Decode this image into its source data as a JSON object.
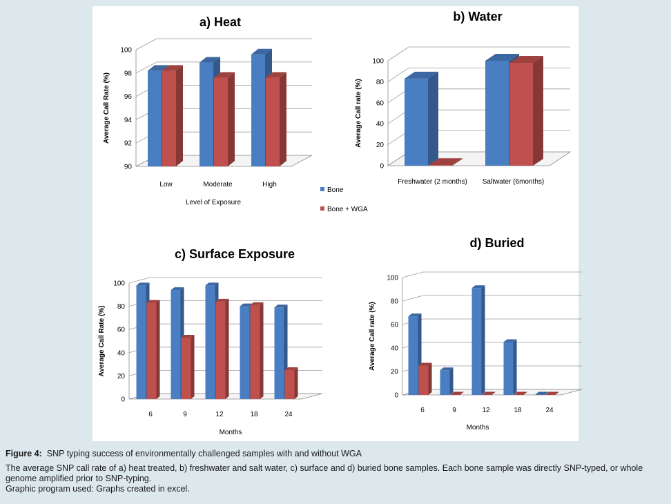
{
  "colors": {
    "bone": "#4a7ec3",
    "bone_wga": "#c0504d",
    "grid": "#9a9a9a"
  },
  "legend": {
    "items": [
      {
        "label": "Bone",
        "color": "#4a7ec3"
      },
      {
        "label": "Bone + WGA",
        "color": "#c0504d"
      }
    ]
  },
  "chart_data": [
    {
      "id": "heat",
      "type": "bar",
      "title": "a)  Heat",
      "xlabel": "Level of Exposure",
      "ylabel": "Average Call Rate (%)",
      "categories": [
        "Low",
        "Moderate",
        "High"
      ],
      "ylim": [
        90,
        100
      ],
      "yticks": [
        "90",
        "92",
        "94",
        "96",
        "98",
        "100"
      ],
      "grid": true,
      "series": [
        {
          "name": "Bone",
          "values": [
            98.2,
            98.9,
            99.6
          ]
        },
        {
          "name": "Bone + WGA",
          "values": [
            98.2,
            97.6,
            97.6
          ]
        }
      ]
    },
    {
      "id": "water",
      "type": "bar",
      "title": "b)  Water",
      "xlabel": "",
      "ylabel": "Average Call rate (%)",
      "categories": [
        "Freshwater (2 months)",
        "Saltwater (6months)"
      ],
      "ylim": [
        0,
        100
      ],
      "yticks": [
        "0",
        "20",
        "40",
        "60",
        "80",
        "100"
      ],
      "grid": true,
      "series": [
        {
          "name": "Bone",
          "values": [
            83,
            100
          ]
        },
        {
          "name": "Bone + WGA",
          "values": [
            0.5,
            98
          ]
        }
      ]
    },
    {
      "id": "surface",
      "type": "bar",
      "title": "c)  Surface Exposure",
      "xlabel": "Months",
      "ylabel": "Average Call Rate (%)",
      "categories": [
        "6",
        "9",
        "12",
        "18",
        "24"
      ],
      "ylim": [
        0,
        100
      ],
      "yticks": [
        "0",
        "20",
        "40",
        "60",
        "80",
        "100"
      ],
      "grid": true,
      "series": [
        {
          "name": "Bone",
          "values": [
            98,
            94,
            98,
            80,
            79
          ]
        },
        {
          "name": "Bone + WGA",
          "values": [
            83,
            53,
            84,
            81,
            25
          ]
        }
      ]
    },
    {
      "id": "buried",
      "type": "bar",
      "title": "d)  Buried",
      "xlabel": "Months",
      "ylabel": "Average Call rate (%)",
      "categories": [
        "6",
        "9",
        "12",
        "18",
        "24"
      ],
      "ylim": [
        0,
        100
      ],
      "yticks": [
        "0",
        "20",
        "40",
        "60",
        "80",
        "100"
      ],
      "grid": true,
      "series": [
        {
          "name": "Bone",
          "values": [
            67,
            21,
            91,
            45,
            0.3
          ]
        },
        {
          "name": "Bone + WGA",
          "values": [
            25,
            0.3,
            0.3,
            0.3,
            0.3
          ]
        }
      ]
    }
  ],
  "caption": {
    "label": "Figure 4:",
    "title": "SNP typing success of environmentally challenged samples with and without WGA",
    "body": "The average SNP call rate of a) heat treated, b) freshwater and salt water, c) surface and d) buried bone samples. Each bone sample was directly SNP-typed, or whole genome amplified prior to SNP-typing.",
    "program": "Graphic program used: Graphs created in excel."
  }
}
